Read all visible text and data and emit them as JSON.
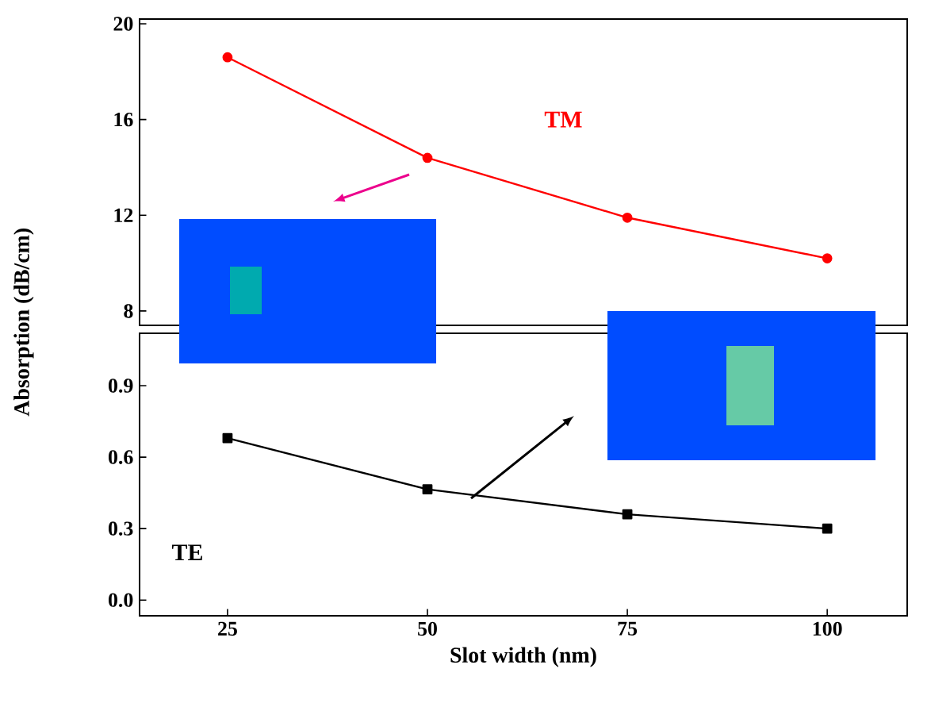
{
  "chart_data": [
    {
      "type": "line",
      "x": [
        25,
        50,
        75,
        100
      ],
      "xlim": [
        14,
        110
      ],
      "ylim": [
        7.4,
        20.2
      ],
      "yticks": [
        8,
        12,
        16,
        20
      ],
      "tick_labels": "y",
      "marker": "circle",
      "line_style": "solid",
      "series": [
        {
          "name": "TM",
          "color": "#ff0000",
          "values": [
            18.6,
            14.4,
            11.9,
            10.2
          ]
        }
      ]
    },
    {
      "type": "line",
      "x": [
        25,
        50,
        75,
        100
      ],
      "xlim": [
        14,
        110
      ],
      "ylim": [
        -0.066,
        1.12
      ],
      "yticks": [
        {
          "value": 0,
          "label": "0.0"
        },
        0.3,
        0.6,
        0.9
      ],
      "xticks": [
        25,
        50,
        75,
        100
      ],
      "xlabel": "Slot width (nm)",
      "ylabel": "Absorption (dB/cm)",
      "marker": "square",
      "line_style": "solid",
      "series": [
        {
          "name": "TE",
          "color": "#000000",
          "values": [
            0.68,
            0.465,
            0.36,
            0.3
          ]
        }
      ]
    }
  ]
}
